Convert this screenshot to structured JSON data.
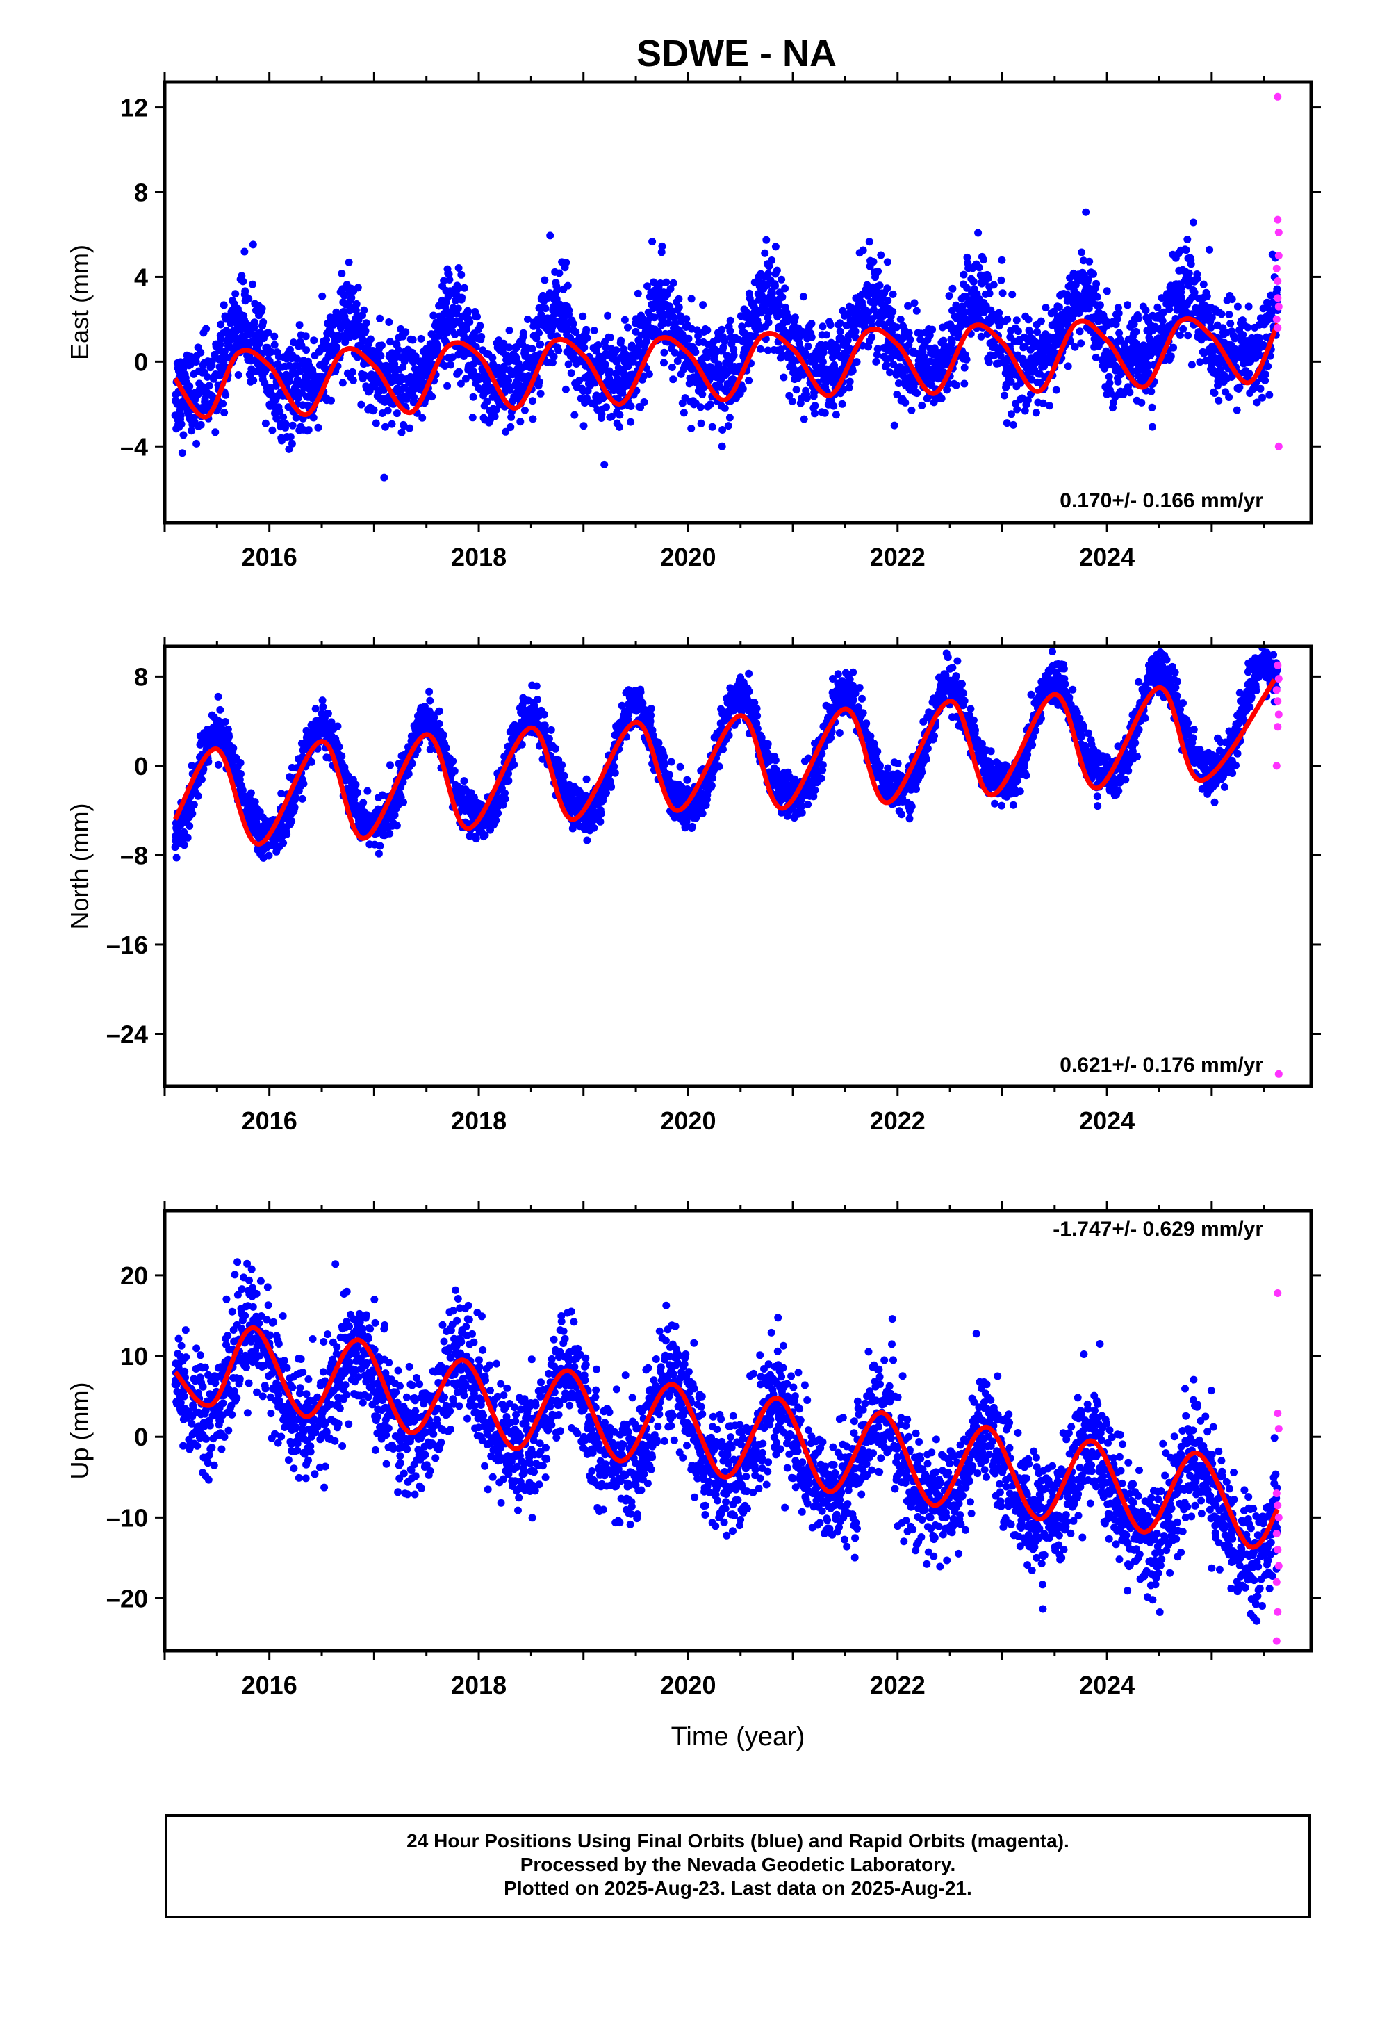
{
  "title": "SDWE - NA",
  "colors": {
    "final": "#0000ff",
    "rapid": "#ff33ff",
    "fit": "#ff0000",
    "frame": "#000000"
  },
  "chart_data": [
    {
      "type": "scatter",
      "panel": "east",
      "ylabel": "East (mm)",
      "xlabel": "",
      "xlim": [
        2015.0,
        2025.95
      ],
      "ylim": [
        -7.6,
        13.2
      ],
      "xticks": [
        2016,
        2018,
        2020,
        2022,
        2024
      ],
      "xtick_labels": [
        "2016",
        "2018",
        "2020",
        "2022",
        "2024"
      ],
      "yticks": [
        -4,
        0,
        4,
        8,
        12
      ],
      "ytick_labels": [
        "-4",
        "0",
        "4",
        "8",
        "12"
      ],
      "rate_label": "0.170+/- 0.166 mm/yr",
      "model": {
        "start": 2015.1,
        "end": 2025.63,
        "offset": -0.3,
        "rate": 0.17,
        "annual_amp": 1.6,
        "annual_peak": 2015.75,
        "semiannual_amp": 0.5,
        "semiannual_phase": 0.0,
        "noise": 1.1
      },
      "fit_points": [
        [
          2015.1,
          -0.8
        ],
        [
          2015.4,
          -2.6
        ],
        [
          2015.7,
          0.4
        ],
        [
          2016.0,
          -0.2
        ],
        [
          2016.35,
          -2.5
        ],
        [
          2016.7,
          0.5
        ],
        [
          2017.0,
          -0.2
        ],
        [
          2017.35,
          -2.4
        ],
        [
          2017.7,
          0.7
        ],
        [
          2018.0,
          0.3
        ],
        [
          2018.35,
          -2.2
        ],
        [
          2018.7,
          0.9
        ],
        [
          2019.0,
          0.3
        ],
        [
          2019.35,
          -2.0
        ],
        [
          2019.7,
          1.0
        ],
        [
          2020.0,
          0.4
        ],
        [
          2020.35,
          -1.8
        ],
        [
          2020.7,
          1.2
        ],
        [
          2021.0,
          0.6
        ],
        [
          2021.35,
          -1.6
        ],
        [
          2021.7,
          1.4
        ],
        [
          2022.0,
          0.8
        ],
        [
          2022.35,
          -1.5
        ],
        [
          2022.7,
          1.6
        ],
        [
          2023.0,
          0.9
        ],
        [
          2023.35,
          -1.4
        ],
        [
          2023.7,
          1.8
        ],
        [
          2024.0,
          1.0
        ],
        [
          2024.35,
          -1.2
        ],
        [
          2024.7,
          1.9
        ],
        [
          2025.0,
          1.2
        ],
        [
          2025.35,
          -1.0
        ],
        [
          2025.63,
          1.8
        ]
      ],
      "rapid_points": [
        [
          2025.63,
          12.5
        ],
        [
          2025.63,
          6.7
        ],
        [
          2025.64,
          6.1
        ],
        [
          2025.64,
          5.0
        ],
        [
          2025.62,
          4.4
        ],
        [
          2025.63,
          3.8
        ],
        [
          2025.63,
          3.0
        ],
        [
          2025.64,
          2.6
        ],
        [
          2025.62,
          2.0
        ],
        [
          2025.63,
          1.6
        ],
        [
          2025.64,
          -4.0
        ]
      ]
    },
    {
      "type": "scatter",
      "panel": "north",
      "ylabel": "North (mm)",
      "xlabel": "",
      "xlim": [
        2015.0,
        2025.95
      ],
      "ylim": [
        -28.7,
        10.7
      ],
      "xticks": [
        2016,
        2018,
        2020,
        2022,
        2024
      ],
      "xtick_labels": [
        "2016",
        "2018",
        "2020",
        "2022",
        "2024"
      ],
      "yticks": [
        -24,
        -16,
        -8,
        0,
        8
      ],
      "ytick_labels": [
        "-24",
        "-16",
        "-8",
        "0",
        "8"
      ],
      "rate_label": "0.621+/- 0.176 mm/yr",
      "model": {
        "start": 2015.1,
        "end": 2025.63,
        "offset": -2.5,
        "rate": 0.62,
        "annual_amp": 4.6,
        "annual_peak": 2015.5,
        "semiannual_amp": 0.6,
        "semiannual_phase": 0.3,
        "noise": 1.0
      },
      "fit_points": [
        [
          2015.1,
          -4.8
        ],
        [
          2015.5,
          1.5
        ],
        [
          2015.9,
          -7.0
        ],
        [
          2016.5,
          2.2
        ],
        [
          2016.9,
          -6.5
        ],
        [
          2017.5,
          2.8
        ],
        [
          2017.9,
          -5.6
        ],
        [
          2018.5,
          3.4
        ],
        [
          2018.9,
          -4.8
        ],
        [
          2019.5,
          3.9
        ],
        [
          2019.9,
          -4.0
        ],
        [
          2020.5,
          4.5
        ],
        [
          2020.9,
          -3.8
        ],
        [
          2021.5,
          5.1
        ],
        [
          2021.9,
          -3.3
        ],
        [
          2022.5,
          5.8
        ],
        [
          2022.9,
          -2.6
        ],
        [
          2023.5,
          6.4
        ],
        [
          2023.9,
          -2.0
        ],
        [
          2024.5,
          7.0
        ],
        [
          2024.9,
          -1.3
        ],
        [
          2025.6,
          7.7
        ]
      ],
      "rapid_points": [
        [
          2025.63,
          9.0
        ],
        [
          2025.64,
          7.8
        ],
        [
          2025.62,
          6.8
        ],
        [
          2025.63,
          5.8
        ],
        [
          2025.64,
          4.6
        ],
        [
          2025.63,
          3.5
        ],
        [
          2025.62,
          0.0
        ],
        [
          2025.64,
          -27.6
        ]
      ]
    },
    {
      "type": "scatter",
      "panel": "up",
      "ylabel": "Up (mm)",
      "xlabel": "Time (year)",
      "xlim": [
        2015.0,
        2025.95
      ],
      "ylim": [
        -26.5,
        28.0
      ],
      "xticks": [
        2016,
        2018,
        2020,
        2022,
        2024
      ],
      "xtick_labels": [
        "2016",
        "2018",
        "2020",
        "2022",
        "2024"
      ],
      "yticks": [
        -20,
        -10,
        0,
        10,
        20
      ],
      "ytick_labels": [
        "-20",
        "-10",
        "0",
        "10",
        "20"
      ],
      "rate_label": "-1.747+/- 0.629 mm/yr",
      "model": {
        "start": 2015.1,
        "end": 2025.63,
        "offset": 8.5,
        "rate": -1.75,
        "annual_amp": 5.2,
        "annual_peak": 2015.85,
        "semiannual_amp": 1.0,
        "semiannual_phase": 0.2,
        "noise": 3.6
      },
      "fit_points": [
        [
          2015.1,
          8.0
        ],
        [
          2015.45,
          4.0
        ],
        [
          2015.85,
          13.5
        ],
        [
          2016.35,
          2.5
        ],
        [
          2016.85,
          12.0
        ],
        [
          2017.35,
          0.5
        ],
        [
          2017.85,
          9.5
        ],
        [
          2018.35,
          -1.5
        ],
        [
          2018.85,
          8.2
        ],
        [
          2019.35,
          -3.0
        ],
        [
          2019.85,
          6.5
        ],
        [
          2020.35,
          -5.0
        ],
        [
          2020.85,
          4.8
        ],
        [
          2021.35,
          -6.8
        ],
        [
          2021.85,
          3.0
        ],
        [
          2022.35,
          -8.5
        ],
        [
          2022.85,
          1.2
        ],
        [
          2023.35,
          -10.2
        ],
        [
          2023.85,
          -0.5
        ],
        [
          2024.35,
          -11.8
        ],
        [
          2024.85,
          -2.0
        ],
        [
          2025.35,
          -13.5
        ],
        [
          2025.63,
          -9.0
        ]
      ],
      "rapid_points": [
        [
          2025.63,
          17.8
        ],
        [
          2025.63,
          2.9
        ],
        [
          2025.64,
          1.0
        ],
        [
          2025.62,
          -7.0
        ],
        [
          2025.63,
          -8.5
        ],
        [
          2025.64,
          -10.0
        ],
        [
          2025.62,
          -12.0
        ],
        [
          2025.63,
          -14.0
        ],
        [
          2025.64,
          -16.0
        ],
        [
          2025.62,
          -18.0
        ],
        [
          2025.63,
          -21.7
        ],
        [
          2025.62,
          -25.3
        ]
      ]
    }
  ],
  "footer": {
    "line1": "24 Hour Positions Using Final Orbits (blue) and Rapid Orbits (magenta).",
    "line2": "Processed by the Nevada Geodetic Laboratory.",
    "line3": "Plotted on 2025-Aug-23. Last data on 2025-Aug-21."
  }
}
